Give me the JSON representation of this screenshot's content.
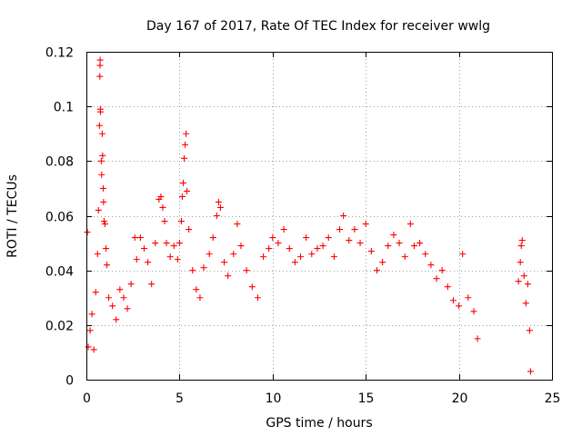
{
  "chart_data": {
    "type": "scatter",
    "title": "Day 167 of 2017, Rate Of TEC Index for receiver wwlg",
    "xlabel": "GPS time / hours",
    "ylabel": "ROTI / TECUs",
    "xlim": [
      0,
      25
    ],
    "ylim": [
      0,
      0.12
    ],
    "xticks": [
      0,
      5,
      10,
      15,
      20,
      25
    ],
    "xtick_labels": [
      "0",
      "5",
      "10",
      "15",
      "20",
      "25"
    ],
    "yticks": [
      0,
      0.02,
      0.04,
      0.06,
      0.08,
      0.1,
      0.12
    ],
    "ytick_labels": [
      "0",
      "0.02",
      "0.04",
      "0.06",
      "0.08",
      "0.1",
      "0.12"
    ],
    "grid": true,
    "marker": "plus",
    "color": "#ff0000",
    "gaps_without_data_hours": [
      [
        21.0,
        23.1
      ]
    ],
    "series": [
      {
        "name": "ROTI",
        "points": [
          [
            0.05,
            0.054
          ],
          [
            0.1,
            0.012
          ],
          [
            0.2,
            0.018
          ],
          [
            0.3,
            0.024
          ],
          [
            0.4,
            0.011
          ],
          [
            0.5,
            0.032
          ],
          [
            0.6,
            0.046
          ],
          [
            0.65,
            0.062
          ],
          [
            0.7,
            0.093
          ],
          [
            0.72,
            0.111
          ],
          [
            0.73,
            0.115
          ],
          [
            0.74,
            0.117
          ],
          [
            0.75,
            0.099
          ],
          [
            0.76,
            0.098
          ],
          [
            0.8,
            0.08
          ],
          [
            0.82,
            0.075
          ],
          [
            0.85,
            0.09
          ],
          [
            0.87,
            0.082
          ],
          [
            0.9,
            0.07
          ],
          [
            0.92,
            0.065
          ],
          [
            0.95,
            0.058
          ],
          [
            1.0,
            0.057
          ],
          [
            1.05,
            0.048
          ],
          [
            1.1,
            0.042
          ],
          [
            1.2,
            0.03
          ],
          [
            1.4,
            0.027
          ],
          [
            1.6,
            0.022
          ],
          [
            1.8,
            0.033
          ],
          [
            2.0,
            0.03
          ],
          [
            2.2,
            0.026
          ],
          [
            2.4,
            0.035
          ],
          [
            2.6,
            0.052
          ],
          [
            2.7,
            0.044
          ],
          [
            2.9,
            0.052
          ],
          [
            3.1,
            0.048
          ],
          [
            3.3,
            0.043
          ],
          [
            3.5,
            0.035
          ],
          [
            3.7,
            0.05
          ],
          [
            3.9,
            0.066
          ],
          [
            4.0,
            0.067
          ],
          [
            4.1,
            0.063
          ],
          [
            4.2,
            0.058
          ],
          [
            4.3,
            0.05
          ],
          [
            4.5,
            0.045
          ],
          [
            4.7,
            0.049
          ],
          [
            4.9,
            0.044
          ],
          [
            5.0,
            0.05
          ],
          [
            5.1,
            0.058
          ],
          [
            5.15,
            0.067
          ],
          [
            5.2,
            0.072
          ],
          [
            5.25,
            0.081
          ],
          [
            5.3,
            0.086
          ],
          [
            5.35,
            0.09
          ],
          [
            5.4,
            0.069
          ],
          [
            5.5,
            0.055
          ],
          [
            5.7,
            0.04
          ],
          [
            5.9,
            0.033
          ],
          [
            6.1,
            0.03
          ],
          [
            6.3,
            0.041
          ],
          [
            6.6,
            0.046
          ],
          [
            6.8,
            0.052
          ],
          [
            7.0,
            0.06
          ],
          [
            7.1,
            0.065
          ],
          [
            7.2,
            0.063
          ],
          [
            7.4,
            0.043
          ],
          [
            7.6,
            0.038
          ],
          [
            7.9,
            0.046
          ],
          [
            8.1,
            0.057
          ],
          [
            8.3,
            0.049
          ],
          [
            8.6,
            0.04
          ],
          [
            8.9,
            0.034
          ],
          [
            9.2,
            0.03
          ],
          [
            9.5,
            0.045
          ],
          [
            9.8,
            0.048
          ],
          [
            10.0,
            0.052
          ],
          [
            10.3,
            0.05
          ],
          [
            10.6,
            0.055
          ],
          [
            10.9,
            0.048
          ],
          [
            11.2,
            0.043
          ],
          [
            11.5,
            0.045
          ],
          [
            11.8,
            0.052
          ],
          [
            12.1,
            0.046
          ],
          [
            12.4,
            0.048
          ],
          [
            12.7,
            0.049
          ],
          [
            13.0,
            0.052
          ],
          [
            13.3,
            0.045
          ],
          [
            13.6,
            0.055
          ],
          [
            13.8,
            0.06
          ],
          [
            14.1,
            0.051
          ],
          [
            14.4,
            0.055
          ],
          [
            14.7,
            0.05
          ],
          [
            15.0,
            0.057
          ],
          [
            15.3,
            0.047
          ],
          [
            15.6,
            0.04
          ],
          [
            15.9,
            0.043
          ],
          [
            16.2,
            0.049
          ],
          [
            16.5,
            0.053
          ],
          [
            16.8,
            0.05
          ],
          [
            17.1,
            0.045
          ],
          [
            17.4,
            0.057
          ],
          [
            17.6,
            0.049
          ],
          [
            17.9,
            0.05
          ],
          [
            18.2,
            0.046
          ],
          [
            18.5,
            0.042
          ],
          [
            18.8,
            0.037
          ],
          [
            19.1,
            0.04
          ],
          [
            19.4,
            0.034
          ],
          [
            19.7,
            0.029
          ],
          [
            20.0,
            0.027
          ],
          [
            20.2,
            0.046
          ],
          [
            20.5,
            0.03
          ],
          [
            20.8,
            0.025
          ],
          [
            21.0,
            0.015
          ],
          [
            23.2,
            0.036
          ],
          [
            23.3,
            0.043
          ],
          [
            23.35,
            0.049
          ],
          [
            23.4,
            0.051
          ],
          [
            23.5,
            0.038
          ],
          [
            23.6,
            0.028
          ],
          [
            23.7,
            0.035
          ],
          [
            23.8,
            0.018
          ],
          [
            23.85,
            0.003
          ]
        ]
      }
    ]
  }
}
